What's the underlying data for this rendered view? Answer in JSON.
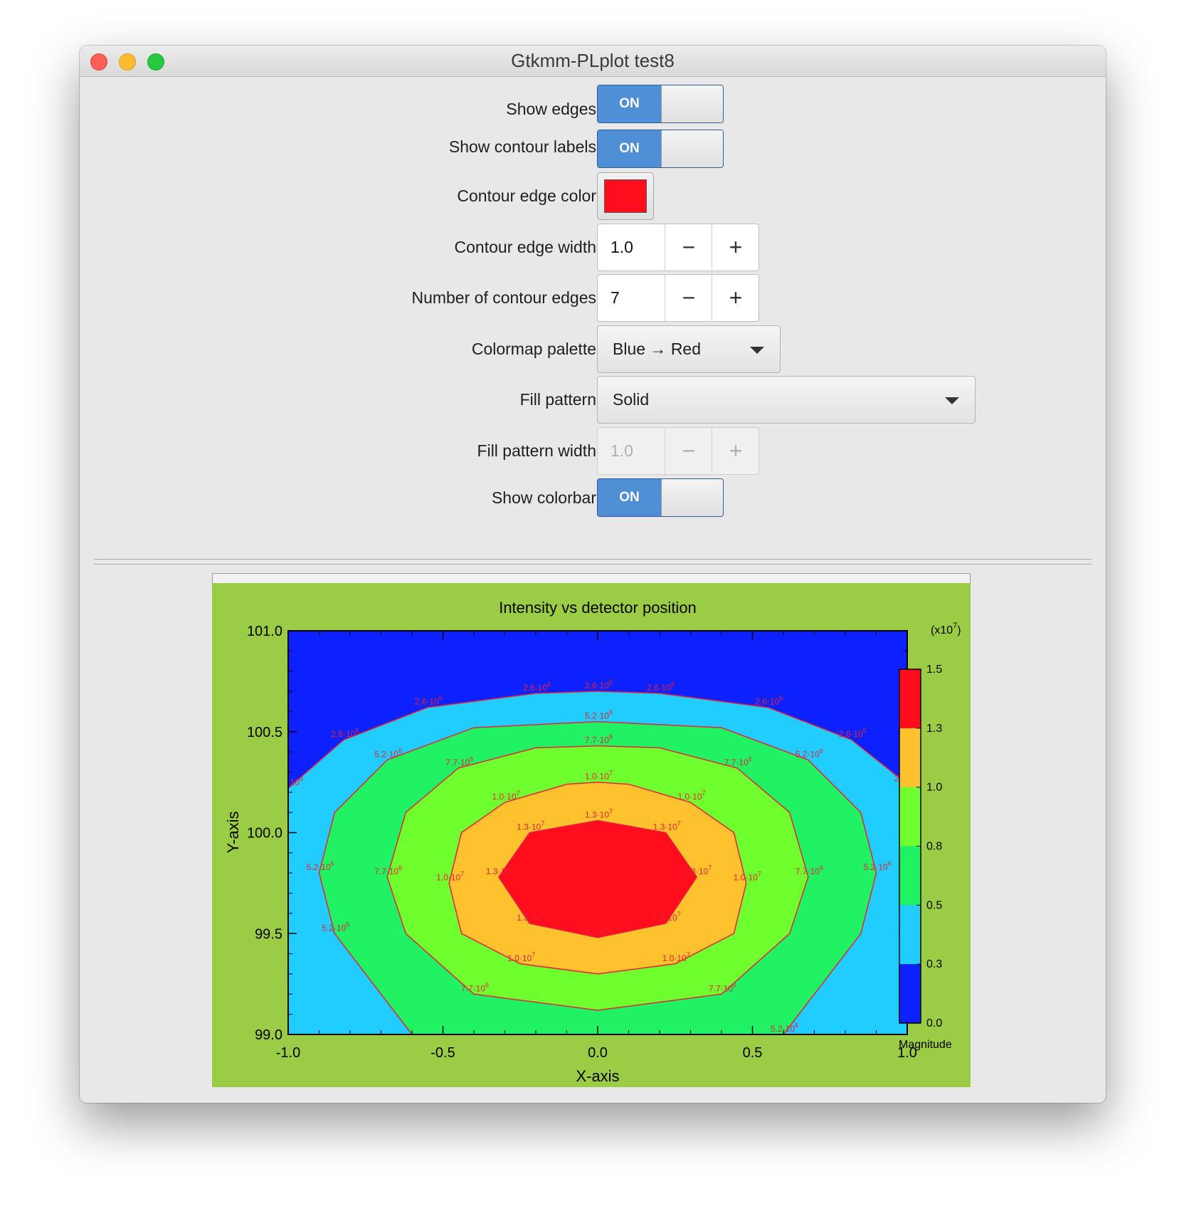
{
  "window": {
    "title": "Gtkmm-PLplot test8"
  },
  "controls": {
    "show_edges": {
      "label": "Show edges",
      "state": "ON"
    },
    "show_contour_labels": {
      "label": "Show contour labels",
      "state": "ON"
    },
    "contour_edge_color": {
      "label": "Contour edge color",
      "color": "#ff0d1d"
    },
    "contour_edge_width": {
      "label": "Contour edge width",
      "value": "1.0",
      "minus": "−",
      "plus": "+"
    },
    "number_of_contour_edges": {
      "label": "Number of contour edges",
      "value": "7",
      "minus": "−",
      "plus": "+"
    },
    "colormap_palette": {
      "label": "Colormap palette",
      "value": "Blue → Red"
    },
    "fill_pattern": {
      "label": "Fill pattern",
      "value": "Solid"
    },
    "fill_pattern_width": {
      "label": "Fill pattern width",
      "value": "1.0",
      "minus": "−",
      "plus": "+",
      "disabled": true
    },
    "show_colorbar": {
      "label": "Show colorbar",
      "state": "ON"
    }
  },
  "plot": {
    "background": "#9acc45",
    "edge_color": "#e8223a",
    "colorbar": {
      "multiplier": "(x10",
      "multiplier_exp": "7",
      "multiplier_close": ")",
      "label": "Magnitude",
      "ticks": [
        "0.0",
        "0.3",
        "0.5",
        "0.8",
        "1.0",
        "1.3",
        "1.5"
      ],
      "colors": [
        "#0d21ff",
        "#21ccff",
        "#20f264",
        "#70ff2e",
        "#ffc22f",
        "#ff0d1d"
      ]
    },
    "contour_labels": [
      "2.6·10",
      "5.2·10",
      "7.7·10",
      "1.0·10",
      "1.3·10"
    ],
    "contour_label_exps": [
      "6",
      "6",
      "6",
      "7",
      "7"
    ]
  },
  "chart_data": {
    "type": "contour",
    "title": "Intensity vs detector position",
    "xlabel": "X-axis",
    "ylabel": "Y-axis",
    "xlim": [
      -1.0,
      1.0
    ],
    "ylim": [
      99.0,
      101.0
    ],
    "xticks": [
      "-1.0",
      "-0.5",
      "0.0",
      "0.5",
      "1.0"
    ],
    "yticks": [
      "99.0",
      "99.5",
      "100.0",
      "100.5",
      "101.0"
    ],
    "x_tick_values": [
      -1.0,
      -0.5,
      0.0,
      0.5,
      1.0
    ],
    "y_tick_values": [
      99.0,
      99.5,
      100.0,
      100.5,
      101.0
    ],
    "contour_levels": [
      2600000,
      5200000,
      7700000,
      10000000,
      13000000
    ],
    "levels": [
      {
        "label": "2.6·10^6",
        "points": [
          [
            -1.0,
            100.22
          ],
          [
            -0.82,
            100.46
          ],
          [
            -0.55,
            100.62
          ],
          [
            -0.2,
            100.69
          ],
          [
            0.0,
            100.7
          ],
          [
            0.2,
            100.69
          ],
          [
            0.55,
            100.62
          ],
          [
            0.82,
            100.46
          ],
          [
            1.0,
            100.24
          ]
        ]
      },
      {
        "label": "5.2·10^6",
        "points": [
          [
            -0.9,
            99.8
          ],
          [
            -0.85,
            100.1
          ],
          [
            -0.68,
            100.36
          ],
          [
            -0.4,
            100.52
          ],
          [
            0.0,
            100.55
          ],
          [
            0.4,
            100.52
          ],
          [
            0.68,
            100.36
          ],
          [
            0.85,
            100.1
          ],
          [
            0.9,
            99.8
          ],
          [
            0.85,
            99.5
          ],
          [
            0.6,
            99.0
          ],
          [
            -0.6,
            99.0
          ],
          [
            -0.85,
            99.5
          ]
        ]
      },
      {
        "label": "7.7·10^6",
        "points": [
          [
            -0.68,
            99.78
          ],
          [
            -0.62,
            100.1
          ],
          [
            -0.45,
            100.32
          ],
          [
            -0.2,
            100.42
          ],
          [
            0.0,
            100.43
          ],
          [
            0.2,
            100.42
          ],
          [
            0.45,
            100.32
          ],
          [
            0.62,
            100.1
          ],
          [
            0.68,
            99.78
          ],
          [
            0.62,
            99.5
          ],
          [
            0.4,
            99.2
          ],
          [
            0.0,
            99.12
          ],
          [
            -0.4,
            99.2
          ],
          [
            -0.62,
            99.5
          ]
        ]
      },
      {
        "label": "1.0·10^7",
        "points": [
          [
            -0.48,
            99.75
          ],
          [
            -0.44,
            100.0
          ],
          [
            -0.3,
            100.15
          ],
          [
            -0.1,
            100.24
          ],
          [
            0.0,
            100.25
          ],
          [
            0.1,
            100.24
          ],
          [
            0.3,
            100.15
          ],
          [
            0.44,
            100.0
          ],
          [
            0.48,
            99.75
          ],
          [
            0.44,
            99.5
          ],
          [
            0.25,
            99.35
          ],
          [
            0.0,
            99.3
          ],
          [
            -0.25,
            99.35
          ],
          [
            -0.44,
            99.5
          ]
        ]
      },
      {
        "label": "1.3·10^7",
        "points": [
          [
            -0.32,
            99.78
          ],
          [
            -0.22,
            100.0
          ],
          [
            0.0,
            100.06
          ],
          [
            0.22,
            100.0
          ],
          [
            0.32,
            99.78
          ],
          [
            0.22,
            99.55
          ],
          [
            0.0,
            99.48
          ],
          [
            -0.22,
            99.55
          ]
        ]
      }
    ]
  }
}
